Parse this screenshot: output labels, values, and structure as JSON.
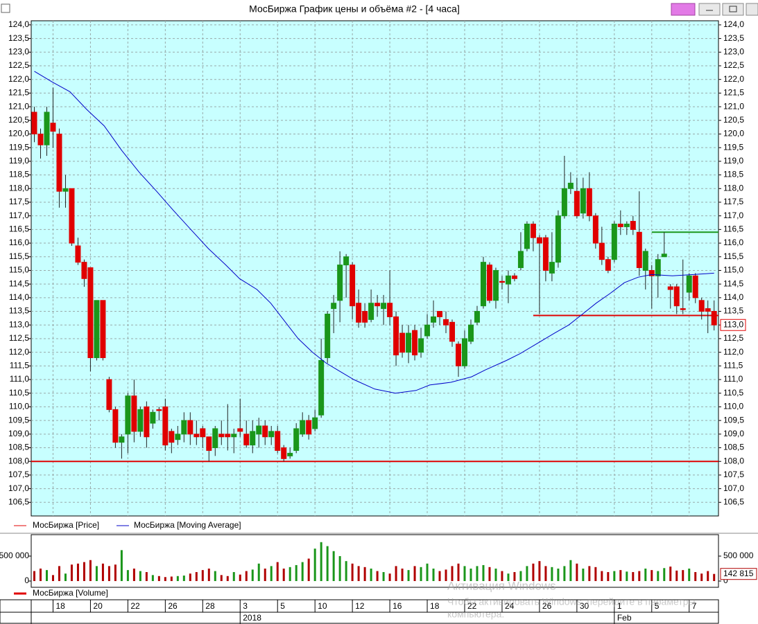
{
  "window_title": "МосБиржа График цены и объёма #2 - [4 часа]",
  "watermark": {
    "title": "Активация Windows",
    "lines": [
      "Чтобы активировать Windows, перейдите в параметры",
      "компьютера."
    ]
  },
  "chart_data": [
    {
      "type": "candlestick",
      "xlim": [
        -0.5,
        109.7
      ],
      "ylim": [
        106.0,
        124.15
      ],
      "yticks": [
        {
          "value": 106.5,
          "label": "106,5"
        },
        {
          "value": 107.0,
          "label": "107,0"
        },
        {
          "value": 107.5,
          "label": "107,5"
        },
        {
          "value": 108.0,
          "label": "108,0"
        },
        {
          "value": 108.5,
          "label": "108,5"
        },
        {
          "value": 109.0,
          "label": "109,0"
        },
        {
          "value": 109.5,
          "label": "109,5"
        },
        {
          "value": 110.0,
          "label": "110,0"
        },
        {
          "value": 110.5,
          "label": "110,5"
        },
        {
          "value": 111.0,
          "label": "111,0"
        },
        {
          "value": 111.5,
          "label": "111,5"
        },
        {
          "value": 112.0,
          "label": "112,0"
        },
        {
          "value": 112.5,
          "label": "112,5"
        },
        {
          "value": 113.0,
          "label": "113,0"
        },
        {
          "value": 113.5,
          "label": "113,5"
        },
        {
          "value": 114.0,
          "label": "114,0"
        },
        {
          "value": 114.5,
          "label": "114,5"
        },
        {
          "value": 115.0,
          "label": "115,0"
        },
        {
          "value": 115.5,
          "label": "115,5"
        },
        {
          "value": 116.0,
          "label": "116,0"
        },
        {
          "value": 116.5,
          "label": "116,5"
        },
        {
          "value": 117.0,
          "label": "117,0"
        },
        {
          "value": 117.5,
          "label": "117,5"
        },
        {
          "value": 118.0,
          "label": "118,0"
        },
        {
          "value": 118.5,
          "label": "118,5"
        },
        {
          "value": 119.0,
          "label": "119,0"
        },
        {
          "value": 119.5,
          "label": "119,5"
        },
        {
          "value": 120.0,
          "label": "120,0"
        },
        {
          "value": 120.5,
          "label": "120,5"
        },
        {
          "value": 121.0,
          "label": "121,0"
        },
        {
          "value": 121.5,
          "label": "121,5"
        },
        {
          "value": 122.0,
          "label": "122,0"
        },
        {
          "value": 122.5,
          "label": "122,5"
        },
        {
          "value": 123.0,
          "label": "123,0"
        },
        {
          "value": 123.5,
          "label": "123,5"
        },
        {
          "value": 124.0,
          "label": "124,0"
        }
      ],
      "grid": true,
      "background": "#c8ffff",
      "last_label": "113,0",
      "hlines": [
        {
          "value": 108.0,
          "color": "#e00000",
          "from": -0.5
        },
        {
          "value": 113.35,
          "color": "#e00000",
          "from": 80
        },
        {
          "value": 116.4,
          "color": "#1a961a",
          "from": 99
        }
      ],
      "series": [
        {
          "name": "МосБиржа [Price]",
          "color": "#e00000",
          "up_color": "#1a961a",
          "open": [
            120.8,
            120.0,
            119.6,
            120.4,
            120.0,
            117.9,
            118.0,
            115.9,
            115.3,
            115.1,
            111.8,
            113.9,
            111.0,
            109.9,
            108.7,
            109.0,
            110.4,
            109.1,
            110.0,
            109.4,
            109.9,
            110.0,
            109.1,
            108.8,
            109.0,
            109.5,
            109.0,
            109.2,
            108.9,
            108.5,
            109.0,
            109.0,
            108.9,
            109.2,
            109.0,
            108.6,
            109.0,
            109.3,
            108.9,
            109.1,
            108.5,
            108.2,
            108.4,
            109.0,
            109.5,
            109.2,
            109.7,
            111.8,
            113.6,
            113.9,
            115.2,
            115.2,
            113.8,
            113.5,
            113.2,
            113.8,
            113.6,
            113.8,
            113.3,
            112.7,
            112.0,
            112.8,
            112.0,
            112.6,
            113.1,
            113.5,
            113.2,
            113.1,
            112.3,
            111.5,
            112.4,
            113.1,
            113.7,
            115.2,
            113.9,
            114.6,
            114.5,
            114.8,
            115.1,
            115.8,
            116.7,
            116.2,
            116.2,
            114.9,
            115.3,
            117.0,
            118.0,
            117.9,
            117.1,
            118.0,
            117.0,
            116.0,
            115.4,
            115.4,
            116.7,
            116.6,
            116.8,
            116.4,
            115.0,
            115.0,
            114.8,
            115.5,
            114.4,
            114.4,
            113.6,
            114.2,
            114.8,
            113.9,
            113.6,
            113.5
          ],
          "high": [
            121.0,
            120.2,
            121.0,
            121.7,
            120.2,
            118.5,
            118.0,
            116.2,
            115.4,
            115.1,
            113.9,
            113.9,
            111.1,
            110.0,
            109.0,
            110.5,
            111.0,
            110.0,
            110.2,
            109.9,
            110.0,
            110.3,
            109.2,
            109.3,
            109.8,
            109.8,
            109.5,
            109.3,
            108.9,
            109.3,
            109.5,
            110.1,
            109.2,
            110.3,
            109.5,
            109.5,
            109.6,
            109.5,
            109.3,
            109.3,
            108.6,
            108.5,
            109.4,
            109.8,
            109.7,
            109.9,
            112.5,
            113.5,
            114.1,
            115.7,
            115.6,
            115.3,
            114.3,
            113.8,
            114.3,
            114.1,
            114.1,
            115.0,
            113.5,
            113.0,
            113.0,
            113.0,
            112.9,
            113.4,
            113.9,
            113.5,
            113.5,
            113.2,
            112.4,
            112.8,
            113.2,
            113.7,
            115.5,
            115.3,
            115.1,
            114.8,
            115.0,
            114.9,
            116.4,
            116.8,
            116.8,
            116.3,
            116.3,
            116.4,
            117.2,
            119.2,
            118.6,
            118.4,
            118.4,
            118.6,
            117.1,
            116.6,
            115.5,
            116.8,
            117.2,
            116.8,
            117.0,
            117.9,
            115.8,
            115.2,
            115.6,
            116.4,
            114.5,
            114.5,
            115.4,
            114.9,
            114.9,
            114.0,
            113.9,
            113.9
          ],
          "low": [
            119.7,
            119.1,
            119.2,
            119.5,
            117.3,
            117.3,
            115.9,
            115.2,
            114.4,
            111.3,
            111.7,
            111.7,
            109.8,
            108.5,
            108.1,
            108.3,
            108.7,
            108.9,
            108.5,
            109.2,
            109.5,
            108.4,
            108.3,
            108.6,
            108.7,
            108.6,
            108.6,
            108.5,
            108.0,
            108.2,
            108.6,
            108.4,
            108.3,
            108.9,
            108.5,
            108.3,
            108.5,
            108.6,
            108.6,
            108.3,
            108.0,
            108.1,
            108.3,
            108.9,
            108.8,
            109.1,
            109.6,
            111.6,
            112.7,
            113.1,
            114.0,
            113.2,
            112.9,
            112.9,
            113.1,
            113.3,
            113.0,
            113.0,
            111.5,
            111.8,
            111.6,
            111.7,
            111.8,
            112.5,
            112.9,
            113.0,
            112.7,
            112.2,
            111.1,
            111.4,
            112.3,
            113.0,
            113.6,
            113.8,
            113.6,
            114.3,
            113.8,
            114.6,
            115.0,
            115.7,
            115.7,
            113.4,
            114.6,
            114.6,
            115.1,
            116.9,
            117.8,
            116.9,
            116.9,
            116.8,
            115.8,
            115.2,
            114.9,
            115.3,
            116.3,
            116.3,
            116.3,
            114.8,
            114.3,
            113.6,
            114.0,
            115.5,
            113.6,
            113.4,
            113.4,
            113.9,
            113.8,
            113.2,
            112.7,
            112.8
          ],
          "close": [
            120.0,
            119.6,
            120.8,
            120.1,
            117.9,
            118.0,
            116.0,
            115.3,
            114.7,
            111.8,
            113.9,
            111.8,
            109.9,
            108.7,
            108.9,
            110.4,
            109.1,
            109.9,
            108.9,
            109.8,
            109.9,
            108.6,
            108.7,
            109.0,
            109.5,
            109.0,
            108.9,
            108.9,
            108.4,
            109.2,
            108.9,
            108.9,
            109.0,
            109.1,
            108.6,
            109.1,
            109.3,
            108.9,
            109.1,
            108.4,
            108.1,
            108.3,
            109.2,
            109.5,
            109.0,
            109.6,
            111.7,
            113.4,
            113.8,
            115.2,
            115.5,
            113.7,
            113.1,
            113.1,
            113.8,
            113.7,
            113.8,
            113.3,
            111.9,
            112.0,
            112.7,
            111.9,
            112.5,
            113.0,
            113.3,
            113.3,
            113.0,
            112.4,
            111.5,
            112.5,
            113.0,
            113.5,
            115.3,
            113.9,
            115.0,
            114.6,
            114.8,
            114.7,
            115.7,
            116.7,
            116.2,
            116.0,
            115.0,
            115.3,
            117.0,
            118.0,
            118.2,
            117.0,
            118.0,
            117.0,
            116.0,
            115.4,
            115.0,
            116.7,
            116.6,
            116.7,
            116.5,
            115.1,
            115.7,
            114.8,
            115.4,
            115.6,
            114.3,
            113.7,
            113.6,
            114.8,
            114.0,
            113.5,
            113.5,
            113.0
          ]
        },
        {
          "name": "МосБиржа [Moving Average]",
          "color": "#0000c8",
          "x": [
            0,
            2.9,
            5.7,
            8.4,
            11.2,
            14,
            16.8,
            19.6,
            22.3,
            25.1,
            27.9,
            30.7,
            32.9,
            35.7,
            37.9,
            40.1,
            42.3,
            44.6,
            46.8,
            49,
            51.2,
            54.6,
            57.9,
            61.2,
            63.4,
            66.8,
            70.1,
            72.3,
            75.7,
            77.9,
            80.1,
            83.4,
            85.7,
            87.9,
            90.1,
            92.3,
            94.6,
            96.8,
            99,
            102.3,
            105.7,
            109
          ],
          "values": [
            122.3,
            121.9,
            121.55,
            120.9,
            120.3,
            119.4,
            118.6,
            117.9,
            117.2,
            116.5,
            115.8,
            115.2,
            114.7,
            114.3,
            113.8,
            113.15,
            112.5,
            112.0,
            111.6,
            111.3,
            111.0,
            110.65,
            110.5,
            110.6,
            110.8,
            110.9,
            111.1,
            111.35,
            111.7,
            111.95,
            112.25,
            112.7,
            113.0,
            113.4,
            113.8,
            114.15,
            114.55,
            114.75,
            114.85,
            114.8,
            114.85,
            114.9
          ]
        }
      ]
    },
    {
      "type": "bar",
      "ylim": [
        -125000,
        930000
      ],
      "yticks": [
        {
          "value": 500000,
          "label": "500 000"
        },
        0
      ],
      "xticks": [
        {
          "value": 3,
          "label": "18"
        },
        {
          "value": 9,
          "label": "20"
        },
        {
          "value": 15,
          "label": "22"
        },
        {
          "value": 21,
          "label": "26"
        },
        {
          "value": 27,
          "label": "28"
        },
        {
          "value": 33,
          "label": "3"
        },
        {
          "value": 39,
          "label": "5"
        },
        {
          "value": 45,
          "label": "10"
        },
        {
          "value": 51,
          "label": "12"
        },
        {
          "value": 57,
          "label": "16"
        },
        {
          "value": 63,
          "label": "18"
        },
        {
          "value": 69,
          "label": "22"
        },
        {
          "value": 75,
          "label": "24"
        },
        {
          "value": 81,
          "label": "26"
        },
        {
          "value": 87,
          "label": "30"
        },
        {
          "value": 93,
          "label": "1"
        },
        {
          "value": 99,
          "label": "5"
        },
        {
          "value": 105,
          "label": "7"
        }
      ],
      "xticks2": [
        {
          "value": 33,
          "label": "2018"
        },
        {
          "value": 93,
          "label": "Feb"
        }
      ],
      "last_label": "142 815",
      "series": [
        {
          "name": "МосБиржа [Volume]",
          "color": "#b00000",
          "up_color": "#1a961a",
          "values": [
            200000,
            250000,
            220000,
            120000,
            300000,
            150000,
            330000,
            350000,
            380000,
            420000,
            300000,
            350000,
            300000,
            330000,
            620000,
            220000,
            250000,
            200000,
            180000,
            120000,
            100000,
            80000,
            90000,
            100000,
            110000,
            150000,
            180000,
            220000,
            250000,
            200000,
            120000,
            100000,
            180000,
            130000,
            200000,
            230000,
            350000,
            250000,
            300000,
            380000,
            250000,
            280000,
            320000,
            380000,
            450000,
            650000,
            780000,
            700000,
            600000,
            500000,
            400000,
            350000,
            300000,
            280000,
            250000,
            200000,
            180000,
            150000,
            300000,
            250000,
            220000,
            300000,
            280000,
            350000,
            250000,
            200000,
            230000,
            300000,
            350000,
            300000,
            250000,
            300000,
            320000,
            280000,
            250000,
            200000,
            150000,
            180000,
            200000,
            300000,
            350000,
            400000,
            300000,
            280000,
            250000,
            300000,
            420000,
            350000,
            250000,
            300000,
            280000,
            200000,
            180000,
            200000,
            220000,
            190000,
            180000,
            200000,
            250000,
            220000,
            200000,
            260000,
            290000,
            210000,
            220000,
            250000,
            180000,
            150000,
            200000,
            142815
          ]
        }
      ]
    }
  ]
}
